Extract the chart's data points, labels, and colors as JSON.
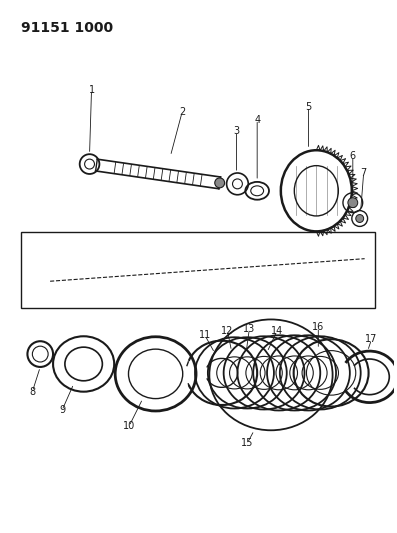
{
  "title": "91151 1000",
  "bg_color": "#ffffff",
  "line_color": "#1a1a1a",
  "figure_width": 3.97,
  "figure_height": 5.33,
  "dpi": 100,
  "label_fontsize": 7,
  "title_fontsize": 10,
  "title_fontweight": "bold"
}
